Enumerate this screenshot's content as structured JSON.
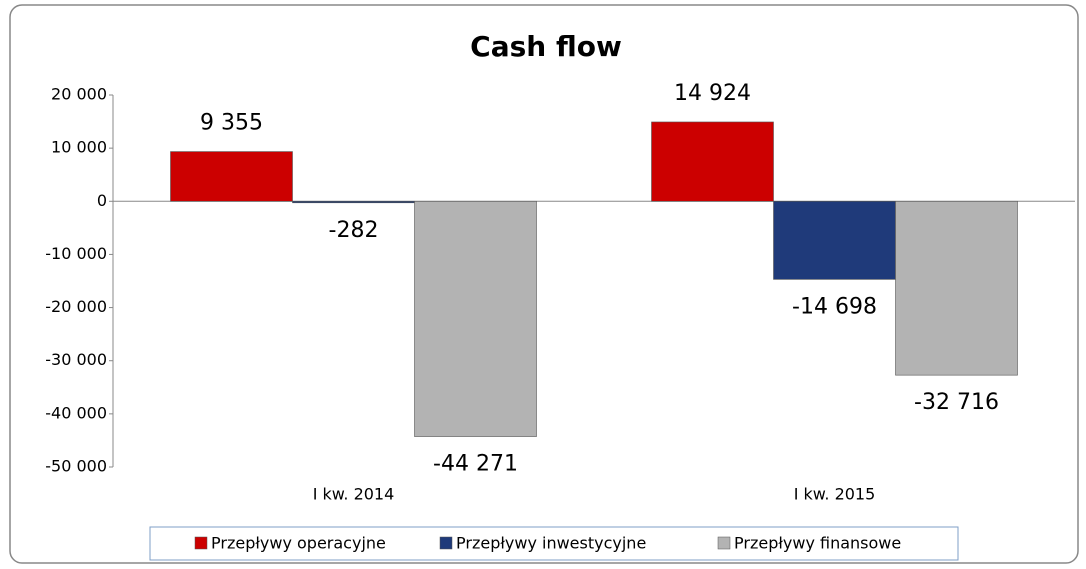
{
  "chart_data": {
    "type": "bar",
    "title": "Cash flow",
    "categories": [
      "I kw. 2014",
      "I kw. 2015"
    ],
    "series": [
      {
        "name": "Przepływy operacyjne",
        "color": "#cc0000",
        "values": [
          9355,
          14924
        ],
        "value_labels": [
          "9 355",
          "14 924"
        ]
      },
      {
        "name": "Przepływy inwestycyjne",
        "color": "#1f3a7a",
        "values": [
          -282,
          -14698
        ],
        "value_labels": [
          "-282",
          "-14 698"
        ]
      },
      {
        "name": "Przepływy finansowe",
        "color": "#b3b3b3",
        "values": [
          -44271,
          -32716
        ],
        "value_labels": [
          "-44 271",
          "-32 716"
        ]
      }
    ],
    "ylim": [
      -50000,
      20000
    ],
    "yticks": [
      {
        "value": -50000,
        "label": "-50 000"
      },
      {
        "value": -40000,
        "label": "-40 000"
      },
      {
        "value": -30000,
        "label": "-30 000"
      },
      {
        "value": -20000,
        "label": "-20 000"
      },
      {
        "value": -10000,
        "label": "-10 000"
      },
      0,
      {
        "value": 10000,
        "label": "10 000"
      },
      {
        "value": 20000,
        "label": "20 000"
      }
    ],
    "legend": "bottom"
  }
}
